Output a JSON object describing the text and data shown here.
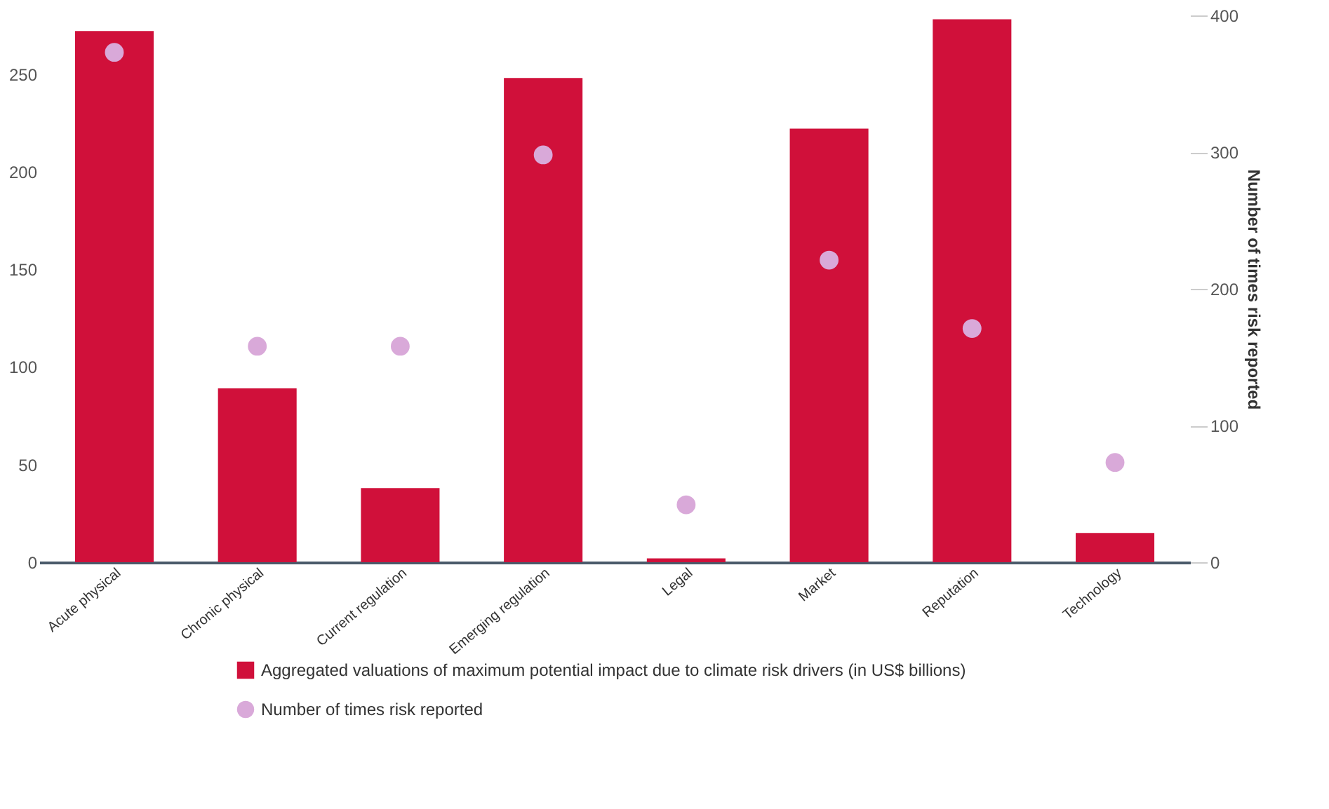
{
  "chart_data": {
    "type": "bar",
    "categories": [
      "Acute physical",
      "Chronic physical",
      "Current regulation",
      "Emerging regulation",
      "Legal",
      "Market",
      "Reputation",
      "Technology"
    ],
    "series": [
      {
        "name": "Aggregated valuations of maximum potential impact due to climate risk drivers (in US$ billions)",
        "color": "#d0103a",
        "values": [
          272,
          89,
          38,
          248,
          2,
          222,
          278,
          15
        ]
      },
      {
        "name": "Number of times risk reported",
        "type": "scatter",
        "axis": "y2",
        "color": "#d9a9d9",
        "values": [
          373,
          158,
          158,
          298,
          42,
          221,
          171,
          73
        ]
      }
    ],
    "ylim": [
      0,
      280
    ],
    "yticks": [
      0,
      50,
      100,
      150,
      200,
      250
    ],
    "y2lim": [
      0,
      400
    ],
    "y2ticks": [
      0,
      100,
      200,
      300,
      400
    ],
    "y2label": "Number of times risk reported",
    "legend": "bottom",
    "grid": false,
    "marker": "circle"
  }
}
